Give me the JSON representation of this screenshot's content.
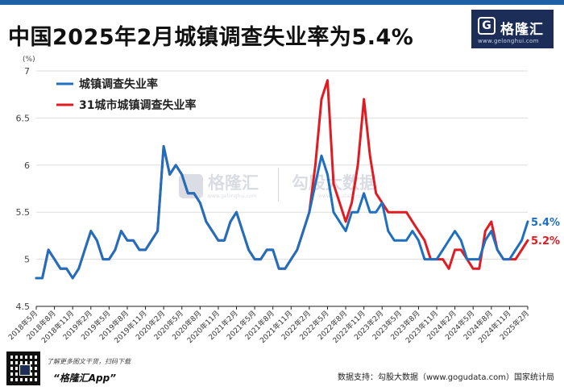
{
  "header": {
    "title": "中国2025年2月城镇调查失业率为5.4%",
    "logo_mark": "G",
    "logo_name": "格隆汇",
    "logo_url": "www.gelonghui.com"
  },
  "footer": {
    "promo_line1": "了解更多图文干货，扫码下载",
    "promo_line2": "“格隆汇App”",
    "source": "数据支持：勾股大数据（www.gogudata.com）国家统计局"
  },
  "watermark": {
    "brand": "格隆汇",
    "brand_url": "www.gelonghui.com",
    "data_brand": "勾股大数据",
    "data_url": "www.gogudata.com"
  },
  "colors": {
    "series1": "#1f6fbf",
    "series2": "#e01b22",
    "grid": "#dddddd"
  },
  "chart_data": {
    "type": "line",
    "title": "中国2025年2月城镇调查失业率为5.4%",
    "ylabel": "(%)",
    "ylim": [
      4.5,
      7
    ],
    "yticks": [
      "4.5",
      "5",
      "5.5",
      "6",
      "6.5",
      "7"
    ],
    "xtick_labels": [
      "2018年5月",
      "2018年8月",
      "2018年11月",
      "2019年2月",
      "2019年5月",
      "2019年8月",
      "2019年11月",
      "2020年2月",
      "2020年5月",
      "2020年8月",
      "2020年11月",
      "2021年2月",
      "2021年5月",
      "2021年8月",
      "2021年11月",
      "2022年2月",
      "2022年5月",
      "2022年8月",
      "2022年11月",
      "2023年2月",
      "2023年5月",
      "2023年8月",
      "2023年11月",
      "2024年2月",
      "2024年5月",
      "2024年8月",
      "2024年11月",
      "2025年2月"
    ],
    "x": [
      "2018年5月",
      "2018年6月",
      "2018年7月",
      "2018年8月",
      "2018年9月",
      "2018年10月",
      "2018年11月",
      "2018年12月",
      "2019年1月",
      "2019年2月",
      "2019年3月",
      "2019年4月",
      "2019年5月",
      "2019年6月",
      "2019年7月",
      "2019年8月",
      "2019年9月",
      "2019年10月",
      "2019年11月",
      "2019年12月",
      "2020年1月",
      "2020年2月",
      "2020年3月",
      "2020年4月",
      "2020年5月",
      "2020年6月",
      "2020年7月",
      "2020年8月",
      "2020年9月",
      "2020年10月",
      "2020年11月",
      "2020年12月",
      "2021年1月",
      "2021年2月",
      "2021年3月",
      "2021年4月",
      "2021年5月",
      "2021年6月",
      "2021年7月",
      "2021年8月",
      "2021年9月",
      "2021年10月",
      "2021年11月",
      "2021年12月",
      "2022年1月",
      "2022年2月",
      "2022年3月",
      "2022年4月",
      "2022年5月",
      "2022年6月",
      "2022年7月",
      "2022年8月",
      "2022年9月",
      "2022年10月",
      "2022年11月",
      "2022年12月",
      "2023年1月",
      "2023年2月",
      "2023年3月",
      "2023年4月",
      "2023年5月",
      "2023年6月",
      "2023年7月",
      "2023年8月",
      "2023年9月",
      "2023年10月",
      "2023年11月",
      "2023年12月",
      "2024年1月",
      "2024年2月",
      "2024年3月",
      "2024年4月",
      "2024年5月",
      "2024年6月",
      "2024年7月",
      "2024年8月",
      "2024年9月",
      "2024年10月",
      "2024年11月",
      "2024年12月",
      "2025年1月",
      "2025年2月"
    ],
    "series": [
      {
        "name": "城镇调查失业率",
        "end_label": "5.4%",
        "values": [
          4.8,
          4.8,
          5.1,
          5.0,
          4.9,
          4.9,
          4.8,
          4.9,
          5.1,
          5.3,
          5.2,
          5.0,
          5.0,
          5.1,
          5.3,
          5.2,
          5.2,
          5.1,
          5.1,
          5.2,
          5.3,
          6.2,
          5.9,
          6.0,
          5.9,
          5.7,
          5.7,
          5.6,
          5.4,
          5.3,
          5.2,
          5.2,
          5.4,
          5.5,
          5.3,
          5.1,
          5.0,
          5.0,
          5.1,
          5.1,
          4.9,
          4.9,
          5.0,
          5.1,
          5.3,
          5.5,
          5.8,
          6.1,
          5.9,
          5.5,
          5.4,
          5.3,
          5.5,
          5.5,
          5.7,
          5.5,
          5.5,
          5.6,
          5.3,
          5.2,
          5.2,
          5.2,
          5.3,
          5.2,
          5.0,
          5.0,
          5.0,
          5.1,
          5.2,
          5.3,
          5.2,
          5.0,
          5.0,
          5.0,
          5.2,
          5.3,
          5.1,
          5.0,
          5.0,
          5.1,
          5.2,
          5.4
        ]
      },
      {
        "name": "31城市城镇调查失业率",
        "end_label": "5.2%",
        "values": [
          4.8,
          4.8,
          5.1,
          5.0,
          4.9,
          4.9,
          4.8,
          4.9,
          5.1,
          5.3,
          5.2,
          5.0,
          5.0,
          5.1,
          5.3,
          5.2,
          5.2,
          5.1,
          5.1,
          5.2,
          5.3,
          6.2,
          5.9,
          6.0,
          5.9,
          5.7,
          5.7,
          5.6,
          5.4,
          5.3,
          5.2,
          5.2,
          5.4,
          5.5,
          5.3,
          5.1,
          5.0,
          5.0,
          5.1,
          5.1,
          4.9,
          4.9,
          5.0,
          5.1,
          5.3,
          5.5,
          6.0,
          6.7,
          6.9,
          5.8,
          5.6,
          5.4,
          5.6,
          6.0,
          6.7,
          6.1,
          5.7,
          5.6,
          5.5,
          5.5,
          5.5,
          5.5,
          5.4,
          5.3,
          5.2,
          5.0,
          5.0,
          5.0,
          4.9,
          5.1,
          5.1,
          5.0,
          4.9,
          4.9,
          5.3,
          5.4,
          5.1,
          5.0,
          5.0,
          5.0,
          5.1,
          5.2
        ]
      }
    ],
    "legend_position": "top-left"
  }
}
